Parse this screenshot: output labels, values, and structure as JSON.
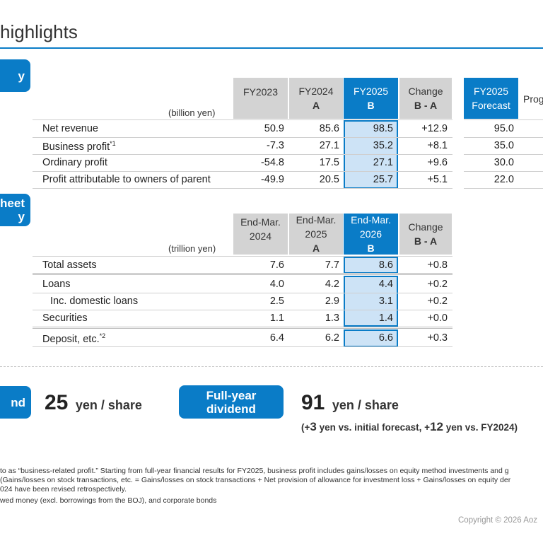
{
  "title": "highlights",
  "badges": {
    "pl": "y",
    "bs_line1": "heet",
    "bs_line2": "y",
    "interim": "nd",
    "fullyear_line1": "Full-year",
    "fullyear_line2": "dividend"
  },
  "pl_table": {
    "unit": "(billion yen)",
    "headers": {
      "fy2023": "FY2023",
      "fy2024": "FY2024",
      "fy2024_sub": "A",
      "fy2025": "FY2025",
      "fy2025_sub": "B",
      "change": "Change",
      "change_sub": "B - A",
      "forecast": "FY2025",
      "forecast_sub": "Forecast",
      "progress": "Prog"
    },
    "rows": [
      {
        "label": "Net revenue",
        "note": "",
        "fy2023": "50.9",
        "fy2024": "85.6",
        "fy2025": "98.5",
        "change": "+12.9",
        "forecast": "95.0"
      },
      {
        "label": "Business profit",
        "note": "*1",
        "fy2023": "-7.3",
        "fy2024": "27.1",
        "fy2025": "35.2",
        "change": "+8.1",
        "forecast": "35.0"
      },
      {
        "label": "Ordinary profit",
        "note": "",
        "fy2023": "-54.8",
        "fy2024": "17.5",
        "fy2025": "27.1",
        "change": "+9.6",
        "forecast": "30.0"
      },
      {
        "label": "Profit attributable to owners of parent",
        "note": "",
        "fy2023": "-49.9",
        "fy2024": "20.5",
        "fy2025": "25.7",
        "change": "+5.1",
        "forecast": "22.0"
      }
    ]
  },
  "bs_table": {
    "unit": "(trillion yen)",
    "headers": {
      "c1": "End-Mar.",
      "c1_sub": "2024",
      "c2": "End-Mar.",
      "c2_sub": "2025",
      "c2_sub2": "A",
      "c3": "End-Mar.",
      "c3_sub": "2026",
      "c3_sub2": "B",
      "change": "Change",
      "change_sub": "B - A"
    },
    "rows": [
      {
        "label": "Total assets",
        "note": "",
        "c1": "7.6",
        "c2": "7.7",
        "c3": "8.6",
        "change": "+0.8"
      },
      {
        "label": "Loans",
        "note": "",
        "c1": "4.0",
        "c2": "4.2",
        "c3": "4.4",
        "change": "+0.2"
      },
      {
        "label": "Inc. domestic loans",
        "note": "",
        "c1": "2.5",
        "c2": "2.9",
        "c3": "3.1",
        "change": "+0.2"
      },
      {
        "label": "Securities",
        "note": "",
        "c1": "1.1",
        "c2": "1.3",
        "c3": "1.4",
        "change": "+0.0"
      },
      {
        "label": "Deposit, etc.",
        "note": "*2",
        "c1": "6.4",
        "c2": "6.2",
        "c3": "6.6",
        "change": "+0.3"
      }
    ]
  },
  "dividends": {
    "interim_value": "25",
    "interim_unit": "yen / share",
    "full_value": "91",
    "full_unit": "yen / share",
    "note_prefix": "(+",
    "note_v1": "3",
    "note_mid": " yen vs. initial forecast, +",
    "note_v2": "12",
    "note_suffix": " yen vs. FY2024)"
  },
  "footnotes": [
    "to as “business-related profit.” Starting from full-year financial results for FY2025, business profit includes gains/losses on equity method investments and g",
    "(Gains/losses on stock transactions, etc. = Gains/losses on stock transactions + Net provision of allowance for investment loss + Gains/losses on equity der",
    "024 have been revised retrospectively.",
    "wed money (excl. borrowings from the BOJ), and corporate bonds"
  ],
  "copyright": "Copyright © 2026 Aoz"
}
